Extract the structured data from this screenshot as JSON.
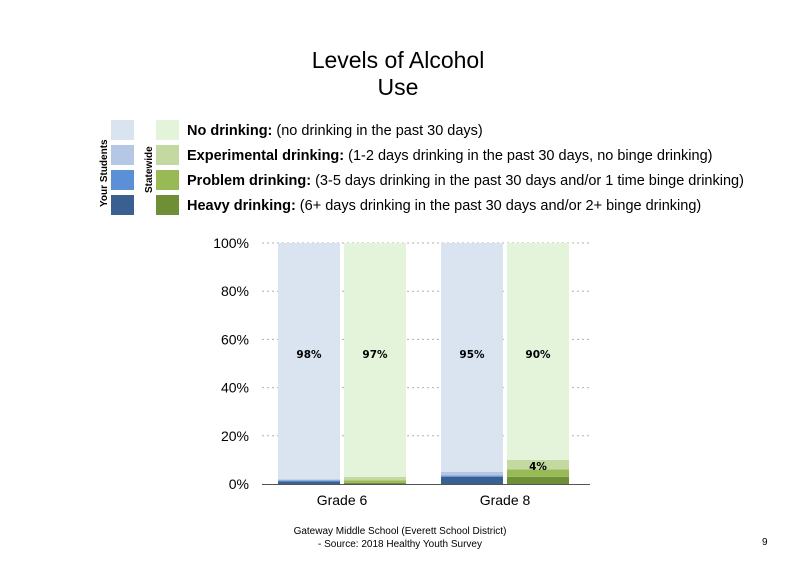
{
  "title_line1": "Levels of Alcohol",
  "title_line2": "Use",
  "legend": {
    "your_students_label": "Your Students",
    "statewide_label": "Statewide",
    "items": [
      {
        "bold": "No drinking:",
        "text": " (no drinking in the past 30 days)"
      },
      {
        "bold": "Experimental drinking:",
        "text": " (1-2 days drinking in the past 30 days, no binge drinking)"
      },
      {
        "bold": "Problem drinking:",
        "text": " (3-5 days drinking in the past 30 days and/or 1 time binge drinking)"
      },
      {
        "bold": "Heavy drinking:",
        "text": " (6+ days drinking in the past 30 days and/or 2+ binge drinking)"
      }
    ]
  },
  "colors": {
    "your_students": [
      "#dae3f0",
      "#b4c7e4",
      "#5b8fd6",
      "#3a5f91"
    ],
    "statewide": [
      "#e4f4da",
      "#c3d9a1",
      "#97ba54",
      "#6f8f37"
    ],
    "grid": "#b0b0b0"
  },
  "chart_data": {
    "type": "bar",
    "stacked": true,
    "categories": [
      "Grade 6",
      "Grade 8"
    ],
    "ylim": [
      0,
      100
    ],
    "yticks": [
      "0%",
      "20%",
      "40%",
      "60%",
      "80%",
      "100%"
    ],
    "ytick_values": [
      0,
      20,
      40,
      60,
      80,
      100
    ],
    "groups": [
      "Your Students",
      "Statewide"
    ],
    "series": [
      {
        "name": "No drinking",
        "your_students": [
          98,
          95
        ],
        "statewide": [
          97,
          90
        ]
      },
      {
        "name": "Experimental drinking",
        "your_students": [
          0.5,
          1.5
        ],
        "statewide": [
          1.5,
          4
        ]
      },
      {
        "name": "Problem drinking",
        "your_students": [
          0.5,
          0.5
        ],
        "statewide": [
          1,
          3
        ]
      },
      {
        "name": "Heavy drinking",
        "your_students": [
          1,
          3
        ],
        "statewide": [
          0.5,
          3
        ]
      }
    ],
    "data_labels": [
      {
        "category": "Grade 6",
        "group": "Your Students",
        "series": "No drinking",
        "text": "98%"
      },
      {
        "category": "Grade 6",
        "group": "Statewide",
        "series": "No drinking",
        "text": "97%"
      },
      {
        "category": "Grade 8",
        "group": "Your Students",
        "series": "No drinking",
        "text": "95%"
      },
      {
        "category": "Grade 8",
        "group": "Statewide",
        "series": "No drinking",
        "text": "90%"
      },
      {
        "category": "Grade 8",
        "group": "Statewide",
        "series": "Experimental drinking",
        "text": "4%"
      }
    ]
  },
  "footer_line1": "Gateway Middle School (Everett School District)",
  "footer_line2": "- Source: 2018 Healthy Youth Survey",
  "page_number": "9"
}
